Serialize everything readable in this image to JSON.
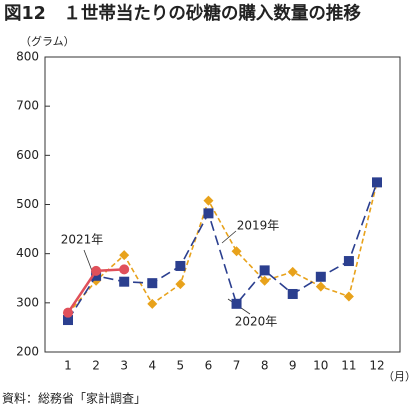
{
  "chart_data": {
    "type": "line",
    "title": "図12　１世帯当たりの砂糖の購入数量の推移",
    "y_axis_label": "（グラム）",
    "x_axis_label": "（月）",
    "source": "資料：総務省「家計調査」",
    "categories": [
      "1",
      "2",
      "3",
      "4",
      "5",
      "6",
      "7",
      "8",
      "9",
      "10",
      "11",
      "12"
    ],
    "ylim": [
      200,
      800
    ],
    "yticks": [
      200,
      300,
      400,
      500,
      600,
      700,
      800
    ],
    "grid": false,
    "series": [
      {
        "name": "2019年",
        "color": "#e8a21b",
        "marker": "diamond",
        "dash": "5 3",
        "values": [
          278,
          345,
          397,
          298,
          338,
          508,
          405,
          345,
          363,
          333,
          313,
          545
        ]
      },
      {
        "name": "2020年",
        "color": "#2b3f8f",
        "marker": "square",
        "dash": "10 5",
        "values": [
          265,
          355,
          343,
          340,
          375,
          482,
          298,
          366,
          318,
          353,
          385,
          545
        ]
      },
      {
        "name": "2021年",
        "color": "#e0505a",
        "marker": "circle",
        "dash": "none",
        "values": [
          280,
          365,
          368,
          null,
          null,
          null,
          null,
          null,
          null,
          null,
          null,
          null
        ]
      }
    ]
  }
}
